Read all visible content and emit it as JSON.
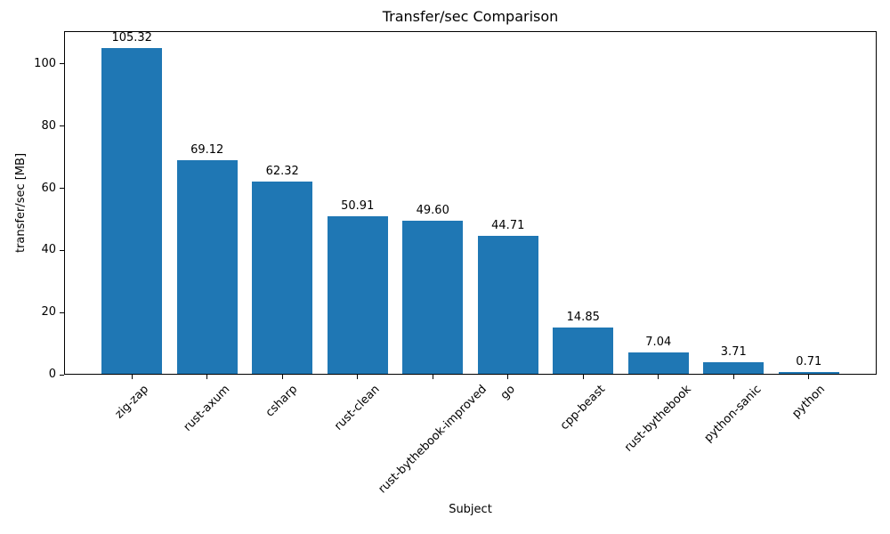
{
  "chart_data": {
    "type": "bar",
    "title": "Transfer/sec Comparison",
    "xlabel": "Subject",
    "ylabel": "transfer/sec [MB]",
    "categories": [
      "zig-zap",
      "rust-axum",
      "csharp",
      "rust-clean",
      "rust-bythebook-improved",
      "go",
      "cpp-beast",
      "rust-bythebook",
      "python-sanic",
      "python"
    ],
    "values": [
      105.32,
      69.12,
      62.32,
      50.91,
      49.6,
      44.71,
      14.85,
      7.04,
      3.71,
      0.71
    ],
    "value_labels": [
      "105.32",
      "69.12",
      "62.32",
      "50.91",
      "49.60",
      "44.71",
      "14.85",
      "7.04",
      "3.71",
      "0.71"
    ],
    "yticks": [
      0,
      20,
      40,
      60,
      80,
      100
    ],
    "ylim": [
      0,
      110.59
    ],
    "xtick_rotation_deg": 45,
    "grid": false,
    "legend": "none",
    "bar_color": "#1f77b4",
    "axis_color": "#000000",
    "background_color": "#ffffff"
  }
}
